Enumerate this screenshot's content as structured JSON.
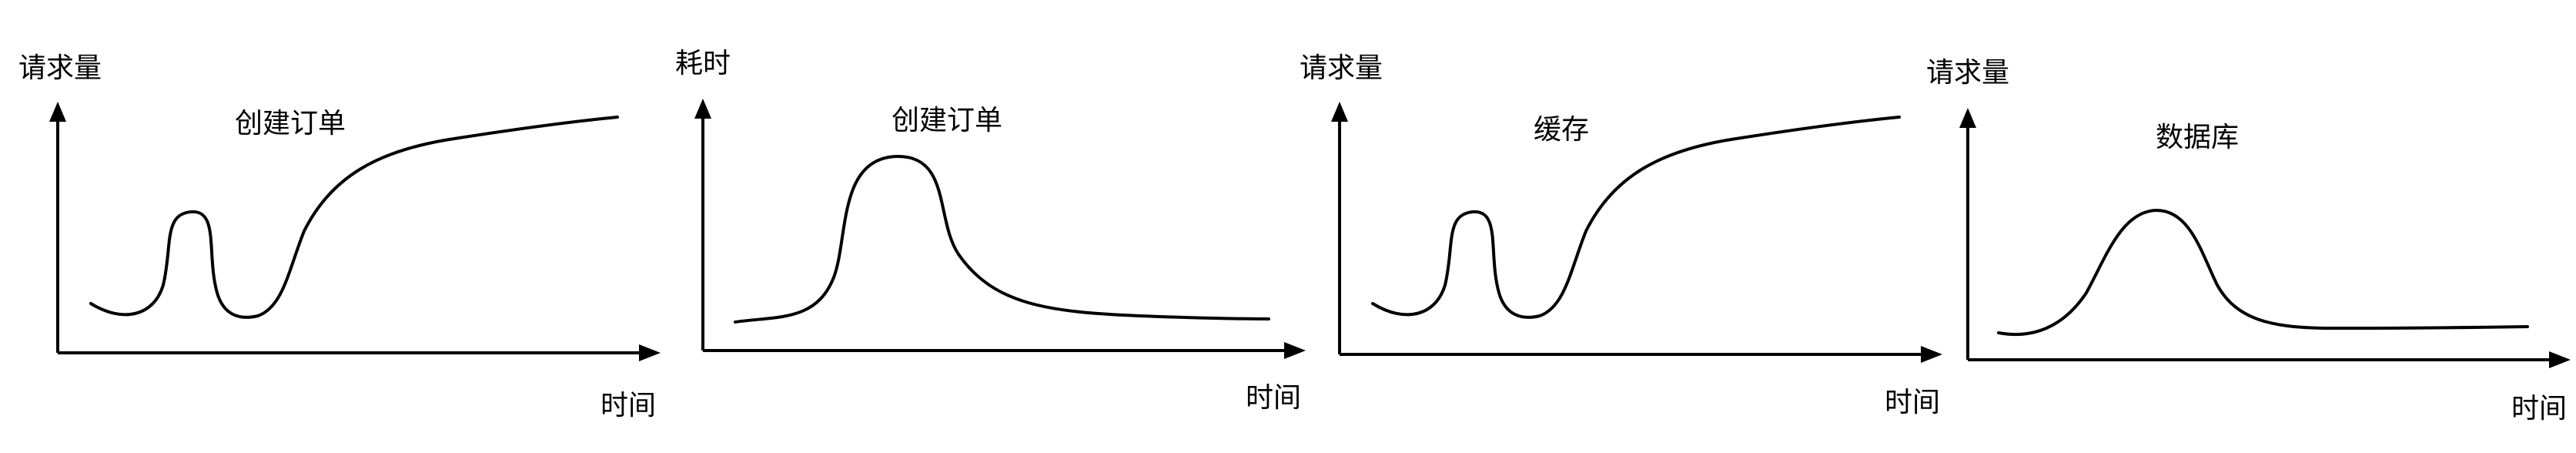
{
  "panels": [
    {
      "y_label": "请求量",
      "x_label": "时间",
      "title": "创建订单",
      "curve": "double-peak-then-rise"
    },
    {
      "y_label": "耗时",
      "x_label": "时间",
      "title": "创建订单",
      "curve": "single-peak-then-flat"
    },
    {
      "y_label": "请求量",
      "x_label": "时间",
      "title": "缓存",
      "curve": "double-peak-then-rise"
    },
    {
      "y_label": "请求量",
      "x_label": "时间",
      "title": "数据库",
      "curve": "single-peak-then-flat"
    }
  ],
  "colors": {
    "line": "#000000",
    "background": "#ffffff"
  }
}
